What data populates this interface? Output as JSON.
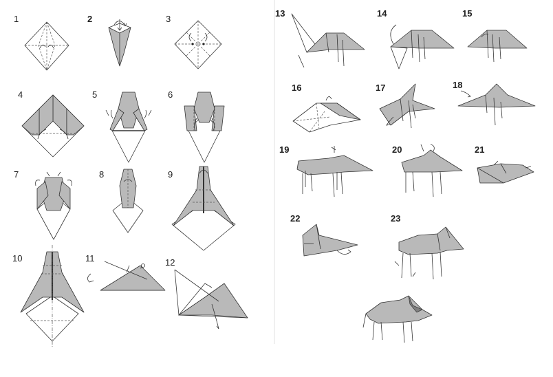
{
  "steps": [
    {
      "id": "1",
      "label": "1"
    },
    {
      "id": "2",
      "label": "2"
    },
    {
      "id": "3",
      "label": "3"
    },
    {
      "id": "4",
      "label": "4"
    },
    {
      "id": "5",
      "label": "5"
    },
    {
      "id": "6",
      "label": "6"
    },
    {
      "id": "7",
      "label": "7"
    },
    {
      "id": "8",
      "label": "8"
    },
    {
      "id": "9",
      "label": "9"
    },
    {
      "id": "10",
      "label": "10"
    },
    {
      "id": "11",
      "label": "11"
    },
    {
      "id": "12",
      "label": "12"
    },
    {
      "id": "13",
      "label": "13"
    },
    {
      "id": "14",
      "label": "14"
    },
    {
      "id": "15",
      "label": "15"
    },
    {
      "id": "16",
      "label": "16"
    },
    {
      "id": "17",
      "label": "17"
    },
    {
      "id": "18",
      "label": "18"
    },
    {
      "id": "19",
      "label": "19"
    },
    {
      "id": "20",
      "label": "20"
    },
    {
      "id": "21",
      "label": "21"
    },
    {
      "id": "22",
      "label": "22"
    },
    {
      "id": "23",
      "label": "23"
    }
  ],
  "colors": {
    "paper_fill": "#b9b9b9",
    "line": "#333333",
    "background": "#ffffff"
  }
}
